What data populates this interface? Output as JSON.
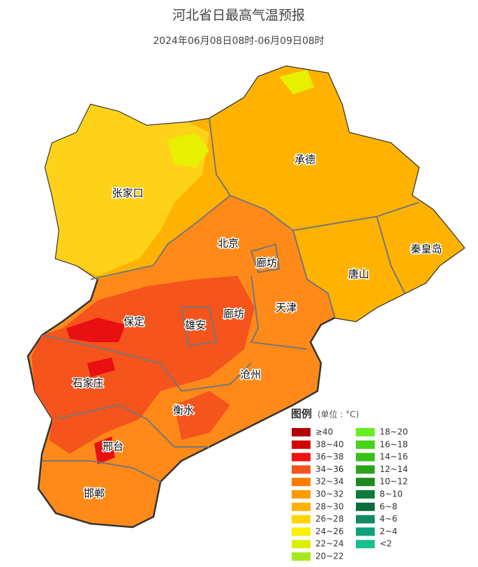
{
  "title": "河北省日最高气温预报",
  "subtitle": "2024年06月08日08时-06月09日08时",
  "cities": [
    "承德",
    "张家口",
    "北京",
    "廊坊",
    "秦皇岛",
    "唐山",
    "保定",
    "雄安",
    "廊坊",
    "天津",
    "石家庄",
    "沧州",
    "衡水",
    "邢台",
    "邯郸"
  ],
  "legend": {
    "title": "图例",
    "unit": "(单位 : °C)",
    "items": [
      {
        "label": "≥40",
        "color": "#b30000"
      },
      {
        "label": "38~40",
        "color": "#d40000"
      },
      {
        "label": "36~38",
        "color": "#f01010"
      },
      {
        "label": "34~36",
        "color": "#f5541c"
      },
      {
        "label": "32~34",
        "color": "#ff7b00"
      },
      {
        "label": "30~32",
        "color": "#ff9a00"
      },
      {
        "label": "28~30",
        "color": "#ffb300"
      },
      {
        "label": "26~28",
        "color": "#ffd500"
      },
      {
        "label": "24~26",
        "color": "#ffee00"
      },
      {
        "label": "22~24",
        "color": "#d9f000"
      },
      {
        "label": "20~22",
        "color": "#a8e81f"
      },
      {
        "label": "18~20",
        "color": "#66ee22"
      },
      {
        "label": "16~18",
        "color": "#44d418"
      },
      {
        "label": "14~16",
        "color": "#36c018"
      },
      {
        "label": "12~14",
        "color": "#2aa318"
      },
      {
        "label": "10~12",
        "color": "#1e8a1e"
      },
      {
        "label": "8~10",
        "color": "#0e7a3c"
      },
      {
        "label": "6~8",
        "color": "#0b6b3a"
      },
      {
        "label": "4~6",
        "color": "#148a5f"
      },
      {
        "label": "2~4",
        "color": "#10a07a"
      },
      {
        "label": "<2",
        "color": "#18c090"
      }
    ]
  }
}
